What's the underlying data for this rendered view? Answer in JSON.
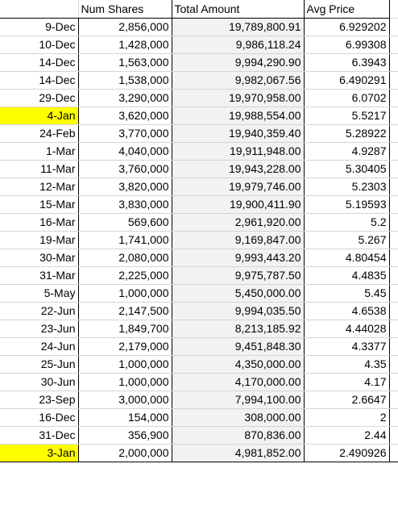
{
  "columns": [
    "",
    "Num Shares",
    "Total Amount",
    "Avg Price"
  ],
  "colors": {
    "highlight": "#ffff00",
    "shaded_cell": "#f2f2f2",
    "gridline": "#d4d4d4"
  },
  "rows": [
    {
      "date": "9-Dec",
      "shares": "2,856,000",
      "amount": "19,789,800.91",
      "avg": "6.929202",
      "highlight": false
    },
    {
      "date": "10-Dec",
      "shares": "1,428,000",
      "amount": "9,986,118.24",
      "avg": "6.99308",
      "highlight": false
    },
    {
      "date": "14-Dec",
      "shares": "1,563,000",
      "amount": "9,994,290.90",
      "avg": "6.3943",
      "highlight": false
    },
    {
      "date": "14-Dec",
      "shares": "1,538,000",
      "amount": "9,982,067.56",
      "avg": "6.490291",
      "highlight": false
    },
    {
      "date": "29-Dec",
      "shares": "3,290,000",
      "amount": "19,970,958.00",
      "avg": "6.0702",
      "highlight": false
    },
    {
      "date": "4-Jan",
      "shares": "3,620,000",
      "amount": "19,988,554.00",
      "avg": "5.5217",
      "highlight": true
    },
    {
      "date": "24-Feb",
      "shares": "3,770,000",
      "amount": "19,940,359.40",
      "avg": "5.28922",
      "highlight": false
    },
    {
      "date": "1-Mar",
      "shares": "4,040,000",
      "amount": "19,911,948.00",
      "avg": "4.9287",
      "highlight": false
    },
    {
      "date": "11-Mar",
      "shares": "3,760,000",
      "amount": "19,943,228.00",
      "avg": "5.30405",
      "highlight": false
    },
    {
      "date": "12-Mar",
      "shares": "3,820,000",
      "amount": "19,979,746.00",
      "avg": "5.2303",
      "highlight": false
    },
    {
      "date": "15-Mar",
      "shares": "3,830,000",
      "amount": "19,900,411.90",
      "avg": "5.19593",
      "highlight": false
    },
    {
      "date": "16-Mar",
      "shares": "569,600",
      "amount": "2,961,920.00",
      "avg": "5.2",
      "highlight": false
    },
    {
      "date": "19-Mar",
      "shares": "1,741,000",
      "amount": "9,169,847.00",
      "avg": "5.267",
      "highlight": false
    },
    {
      "date": "30-Mar",
      "shares": "2,080,000",
      "amount": "9,993,443.20",
      "avg": "4.80454",
      "highlight": false
    },
    {
      "date": "31-Mar",
      "shares": "2,225,000",
      "amount": "9,975,787.50",
      "avg": "4.4835",
      "highlight": false
    },
    {
      "date": "5-May",
      "shares": "1,000,000",
      "amount": "5,450,000.00",
      "avg": "5.45",
      "highlight": false
    },
    {
      "date": "22-Jun",
      "shares": "2,147,500",
      "amount": "9,994,035.50",
      "avg": "4.6538",
      "highlight": false
    },
    {
      "date": "23-Jun",
      "shares": "1,849,700",
      "amount": "8,213,185.92",
      "avg": "4.44028",
      "highlight": false
    },
    {
      "date": "24-Jun",
      "shares": "2,179,000",
      "amount": "9,451,848.30",
      "avg": "4.3377",
      "highlight": false
    },
    {
      "date": "25-Jun",
      "shares": "1,000,000",
      "amount": "4,350,000.00",
      "avg": "4.35",
      "highlight": false
    },
    {
      "date": "30-Jun",
      "shares": "1,000,000",
      "amount": "4,170,000.00",
      "avg": "4.17",
      "highlight": false
    },
    {
      "date": "23-Sep",
      "shares": "3,000,000",
      "amount": "7,994,100.00",
      "avg": "2.6647",
      "highlight": false
    },
    {
      "date": "16-Dec",
      "shares": "154,000",
      "amount": "308,000.00",
      "avg": "2",
      "highlight": false
    },
    {
      "date": "31-Dec",
      "shares": "356,900",
      "amount": "870,836.00",
      "avg": "2.44",
      "highlight": false
    },
    {
      "date": "3-Jan",
      "shares": "2,000,000",
      "amount": "4,981,852.00",
      "avg": "2.490926",
      "highlight": true
    }
  ]
}
